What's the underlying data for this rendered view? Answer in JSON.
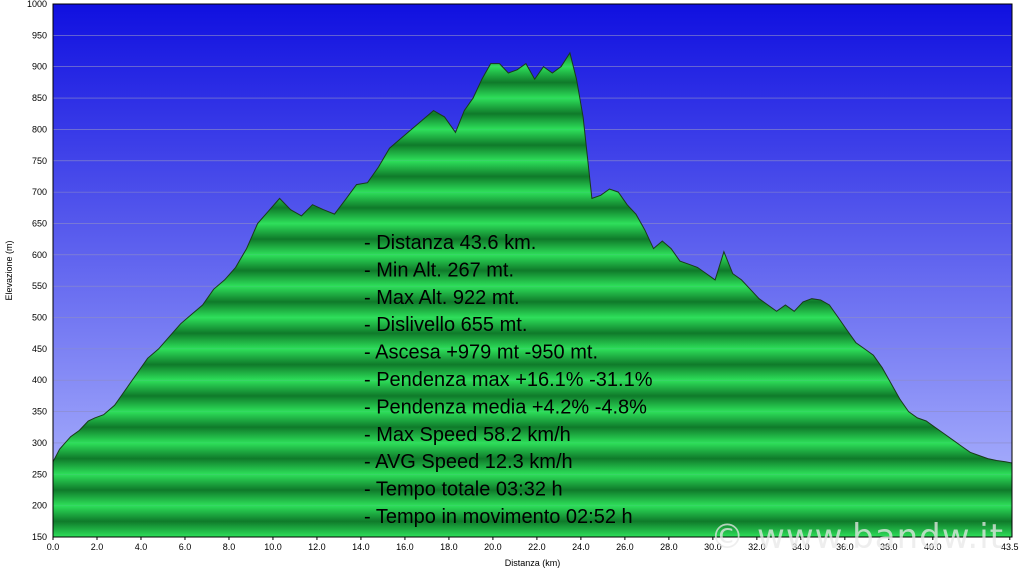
{
  "chart_data": {
    "type": "area",
    "xlabel": "Distanza   (km)",
    "ylabel": "Elevazione  (m)",
    "xlim": [
      0,
      43.6
    ],
    "ylim": [
      150,
      1000
    ],
    "xticks": [
      "0.0",
      "2.0",
      "4.0",
      "6.0",
      "8.0",
      "10.0",
      "12.0",
      "14.0",
      "16.0",
      "18.0",
      "20.0",
      "22.0",
      "24.0",
      "26.0",
      "28.0",
      "30.0",
      "32.0",
      "34.0",
      "36.0",
      "38.0",
      "40.0",
      "43.5"
    ],
    "yticks": [
      "150",
      "200",
      "250",
      "300",
      "350",
      "400",
      "450",
      "500",
      "550",
      "600",
      "650",
      "700",
      "750",
      "800",
      "850",
      "900",
      "950",
      "1000"
    ],
    "grid": true,
    "colors": {
      "sky_top": "#1010e0",
      "sky_bottom": "#b8c0ff",
      "fill_light": "#2ee05a",
      "fill_dark": "#0f7a2a",
      "line": "#1a3a1a"
    },
    "series": [
      {
        "x": [
          0,
          0.3,
          0.8,
          1.2,
          1.6,
          1.9,
          2.3,
          2.8,
          3.3,
          3.8,
          4.3,
          4.8,
          5.3,
          5.8,
          6.3,
          6.8,
          7.3,
          7.8,
          8.3,
          8.8,
          9.3,
          9.8,
          10.3,
          10.8,
          11.3,
          11.8,
          12.3,
          12.8,
          13.3,
          13.8,
          14.3,
          14.8,
          15.3,
          15.8,
          16.3,
          16.8,
          17.3,
          17.8,
          18.3,
          18.7,
          19.1,
          19.5,
          19.9,
          20.3,
          20.7,
          21.1,
          21.5,
          21.9,
          22.3,
          22.7,
          23.1,
          23.5,
          23.8,
          24.1,
          24.5,
          24.9,
          25.3,
          25.7,
          26.1,
          26.5,
          26.9,
          27.3,
          27.7,
          28.1,
          28.5,
          28.9,
          29.3,
          29.7,
          30.1,
          30.5,
          30.9,
          31.3,
          31.7,
          32.1,
          32.5,
          32.9,
          33.3,
          33.7,
          34.1,
          34.5,
          34.9,
          35.3,
          35.7,
          36.1,
          36.5,
          36.9,
          37.3,
          37.7,
          38.1,
          38.5,
          38.9,
          39.3,
          39.7,
          40.1,
          40.5,
          40.9,
          41.3,
          41.7,
          42.1,
          42.5,
          42.9,
          43.3,
          43.6
        ],
        "values": [
          270,
          290,
          310,
          320,
          335,
          340,
          345,
          360,
          385,
          410,
          435,
          450,
          470,
          490,
          505,
          520,
          545,
          560,
          580,
          610,
          650,
          670,
          690,
          672,
          662,
          680,
          672,
          665,
          688,
          712,
          715,
          740,
          770,
          785,
          800,
          815,
          830,
          820,
          795,
          830,
          850,
          880,
          905,
          905,
          890,
          895,
          905,
          880,
          900,
          890,
          900,
          922,
          880,
          820,
          690,
          695,
          705,
          700,
          680,
          665,
          640,
          610,
          622,
          610,
          590,
          585,
          580,
          570,
          560,
          605,
          570,
          560,
          545,
          530,
          520,
          510,
          520,
          510,
          525,
          530,
          528,
          520,
          500,
          480,
          460,
          450,
          440,
          420,
          395,
          370,
          350,
          340,
          335,
          325,
          315,
          305,
          295,
          285,
          280,
          275,
          272,
          270,
          268
        ]
      }
    ],
    "stats": [
      "- Distanza 43.6 km.",
      "- Min Alt. 267 mt.",
      "- Max Alt. 922 mt.",
      "- Dislivello 655 mt.",
      "- Ascesa +979 mt -950 mt.",
      "- Pendenza max +16.1% -31.1%",
      "- Pendenza media +4.2% -4.8%",
      "- Max Speed 58.2 km/h",
      "- AVG Speed 12.3 km/h",
      "- Tempo totale 03:32 h",
      "- Tempo in movimento 02:52 h"
    ],
    "watermark": "© www.bandw.it"
  }
}
